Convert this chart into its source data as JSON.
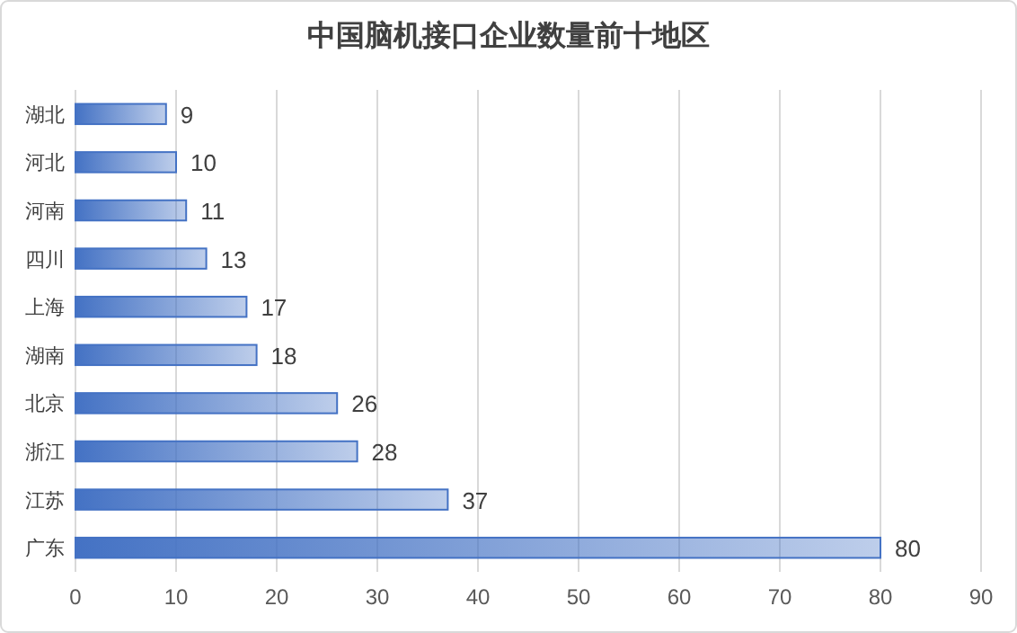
{
  "chart_data": {
    "type": "bar",
    "orientation": "horizontal",
    "title": "中国脑机接口企业数量前十地区",
    "categories": [
      "湖北",
      "河北",
      "河南",
      "四川",
      "上海",
      "湖南",
      "北京",
      "浙江",
      "江苏",
      "广东"
    ],
    "values": [
      9,
      10,
      11,
      13,
      17,
      18,
      26,
      28,
      37,
      80
    ],
    "color": "#4472c4",
    "xlim": [
      0,
      90
    ],
    "xticks": [
      0,
      10,
      20,
      30,
      40,
      50,
      60,
      70,
      80,
      90
    ],
    "grid": "x",
    "data_labels": true
  }
}
